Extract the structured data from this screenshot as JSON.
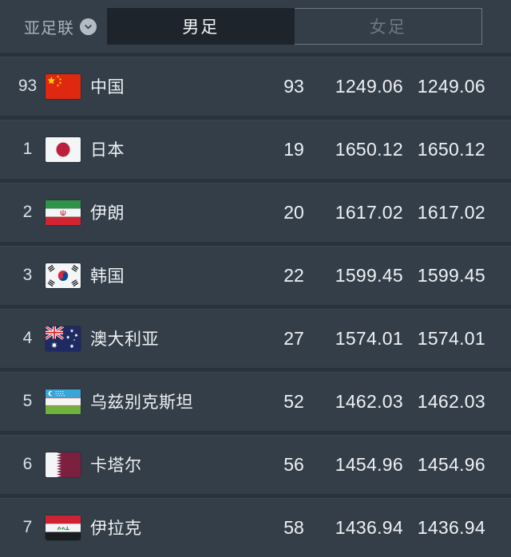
{
  "header": {
    "confederation": {
      "label": "亚足联"
    },
    "tabs": [
      {
        "id": "men",
        "label": "男足",
        "active": true
      },
      {
        "id": "women",
        "label": "女足",
        "active": false
      }
    ]
  },
  "colors": {
    "page_bg": "#333e49",
    "row_bg": "#333e49",
    "divider": "#29323d",
    "active_tab_bg": "#1d242c",
    "active_tab_text": "#f4f6f7",
    "inactive_tab_text": "#6d7884",
    "tab_border": "#6e7883",
    "label_text": "#a9b3bc",
    "row_text": "#eef1f4",
    "rank_text": "#dce2e7"
  },
  "table": {
    "rows": [
      {
        "confed_rank": "93",
        "flag": "china",
        "country": "中国",
        "world_rank": "93",
        "points": "1249.06",
        "points_2": "1249.06"
      },
      {
        "confed_rank": "1",
        "flag": "japan",
        "country": "日本",
        "world_rank": "19",
        "points": "1650.12",
        "points_2": "1650.12"
      },
      {
        "confed_rank": "2",
        "flag": "iran",
        "country": "伊朗",
        "world_rank": "20",
        "points": "1617.02",
        "points_2": "1617.02"
      },
      {
        "confed_rank": "3",
        "flag": "south-korea",
        "country": "韩国",
        "world_rank": "22",
        "points": "1599.45",
        "points_2": "1599.45"
      },
      {
        "confed_rank": "4",
        "flag": "australia",
        "country": "澳大利亚",
        "world_rank": "27",
        "points": "1574.01",
        "points_2": "1574.01"
      },
      {
        "confed_rank": "5",
        "flag": "uzbekistan",
        "country": "乌兹别克斯坦",
        "world_rank": "52",
        "points": "1462.03",
        "points_2": "1462.03"
      },
      {
        "confed_rank": "6",
        "flag": "qatar",
        "country": "卡塔尔",
        "world_rank": "56",
        "points": "1454.96",
        "points_2": "1454.96"
      },
      {
        "confed_rank": "7",
        "flag": "iraq",
        "country": "伊拉克",
        "world_rank": "58",
        "points": "1436.94",
        "points_2": "1436.94"
      }
    ]
  }
}
